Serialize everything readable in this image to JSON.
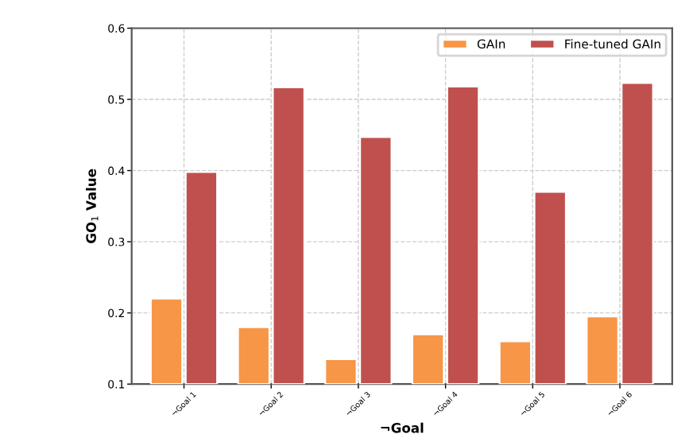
{
  "chart_data": {
    "type": "bar",
    "xlabel": "¬Goal",
    "ylabel": "GO$_{1}$ Value",
    "categories": [
      "¬Goal 1",
      "¬Goal 2",
      "¬Goal 3",
      "¬Goal 4",
      "¬Goal 5",
      "¬Goal 6"
    ],
    "series": [
      {
        "name": "GAIn",
        "color": "#f79646",
        "values": [
          0.22,
          0.18,
          0.135,
          0.17,
          0.16,
          0.195
        ]
      },
      {
        "name": "Fine-tuned GAIn",
        "color": "#c0504d",
        "values": [
          0.398,
          0.517,
          0.447,
          0.518,
          0.37,
          0.523
        ]
      }
    ],
    "ylim": [
      0.1,
      0.6
    ],
    "yticks": [
      0.1,
      0.2,
      0.3,
      0.4,
      0.5,
      0.6
    ],
    "grid": true,
    "legend": "top right"
  }
}
